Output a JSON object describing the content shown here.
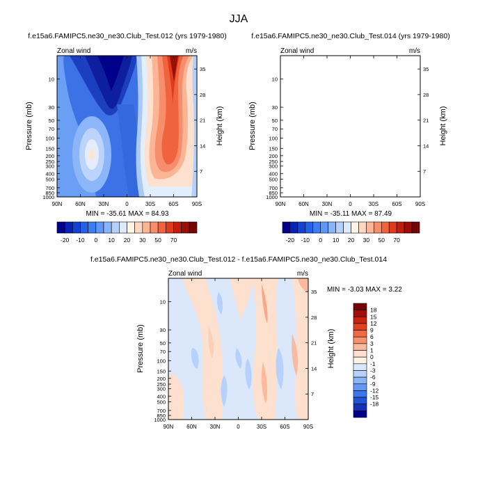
{
  "chart_data": {
    "type": "heatmap",
    "title": "JJA",
    "lat_ticks": [
      "90N",
      "60N",
      "30N",
      "0",
      "30S",
      "60S",
      "90S"
    ],
    "pressure_ticks": [
      "10",
      "30",
      "50",
      "70",
      "100",
      "150",
      "200",
      "250",
      "300",
      "400",
      "500",
      "700",
      "850",
      "1000"
    ],
    "height_ticks": [
      "35",
      "28",
      "21",
      "14",
      "7"
    ],
    "ylabel": "Pressure (mb)",
    "ylabel_right": "Height (km)",
    "variable_label": "Zonal wind",
    "units_label": "m/s",
    "panels": [
      {
        "id": "case1",
        "title": "f.e15a6.FAMIPC5.ne30_ne30.Club_Test.012 (yrs 1979-1980)",
        "stats": "MIN = -35.61  MAX =  84.93",
        "min": -35.61,
        "max": 84.93
      },
      {
        "id": "case2",
        "title": "f.e15a6.FAMIPC5.ne30_ne30.Club_Test.014 (yrs 1979-1980)",
        "stats": "MIN = -35.11  MAX =  87.49",
        "min": -35.11,
        "max": 87.49
      },
      {
        "id": "diff",
        "title": "f.e15a6.FAMIPC5.ne30_ne30.Club_Test.012 - f.e15a6.FAMIPC5.ne30_ne30.Club_Test.014",
        "stats": "MIN =  -3.03  MAX =   3.22",
        "min": -3.03,
        "max": 3.22
      }
    ],
    "colorbar_main": {
      "labels": [
        "-20",
        "-10",
        "0",
        "10",
        "20",
        "30",
        "50",
        "70"
      ],
      "colors": [
        "#00008b",
        "#0a22b4",
        "#1442d2",
        "#2561e6",
        "#3d7df2",
        "#5f97f8",
        "#89b4fa",
        "#b4d0fc",
        "#dde9fd",
        "#fff4e6",
        "#fdd7c0",
        "#fbb595",
        "#f78d6a",
        "#f0633f",
        "#de3b1c",
        "#c21d0c",
        "#9a0e08",
        "#760404"
      ]
    },
    "colorbar_diff": {
      "labels": [
        "18",
        "15",
        "12",
        "9",
        "6",
        "3",
        "1",
        "0",
        "-1",
        "-3",
        "-6",
        "-9",
        "-12",
        "-15",
        "-18"
      ],
      "colors": [
        "#760404",
        "#a40e0a",
        "#c92312",
        "#e0421f",
        "#ef6a43",
        "#f79271",
        "#fbbaa0",
        "#fde0cd",
        "#fff2e4",
        "#dbe8fc",
        "#b6d1fb",
        "#8cb5f8",
        "#6597f3",
        "#3e75ea",
        "#2354d6",
        "#1233b5",
        "#00008b"
      ]
    }
  }
}
